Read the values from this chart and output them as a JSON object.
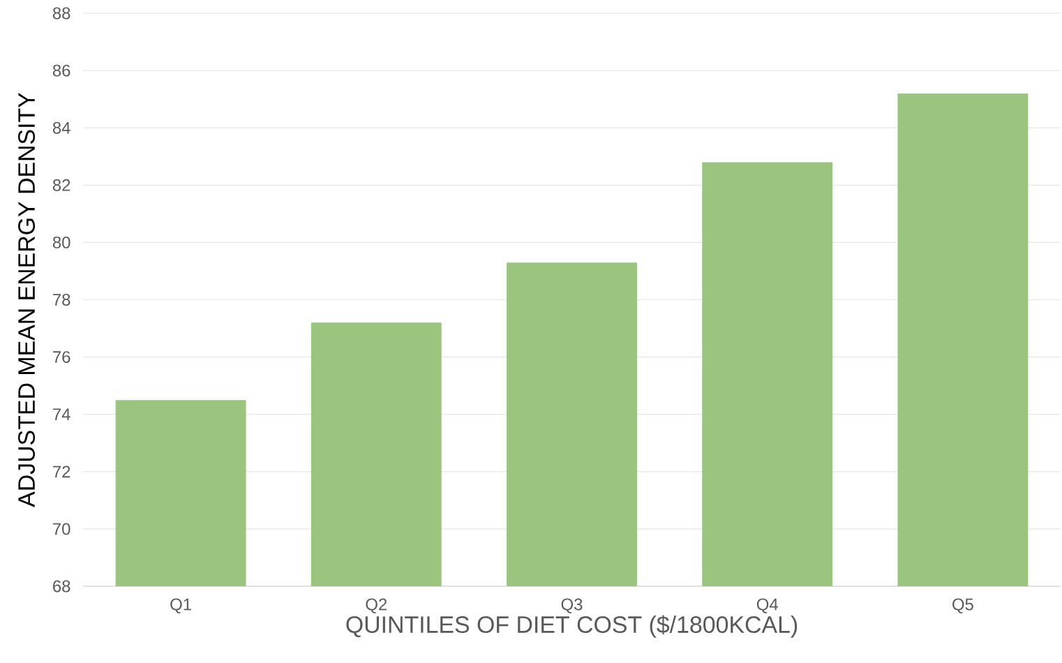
{
  "chart_data": {
    "type": "bar",
    "xlabel": "QUINTILES OF DIET COST ($/1800KCAL)",
    "ylabel": "ADJUSTED MEAN ENERGY DENSITY",
    "categories": [
      "Q1",
      "Q2",
      "Q3",
      "Q4",
      "Q5"
    ],
    "values": [
      74.5,
      77.2,
      79.3,
      82.8,
      85.2
    ],
    "color": "#9bc47f",
    "ylim": [
      68,
      88
    ],
    "yticks": [
      68,
      70,
      72,
      74,
      76,
      78,
      80,
      82,
      84,
      86,
      88
    ],
    "grid": "y"
  }
}
